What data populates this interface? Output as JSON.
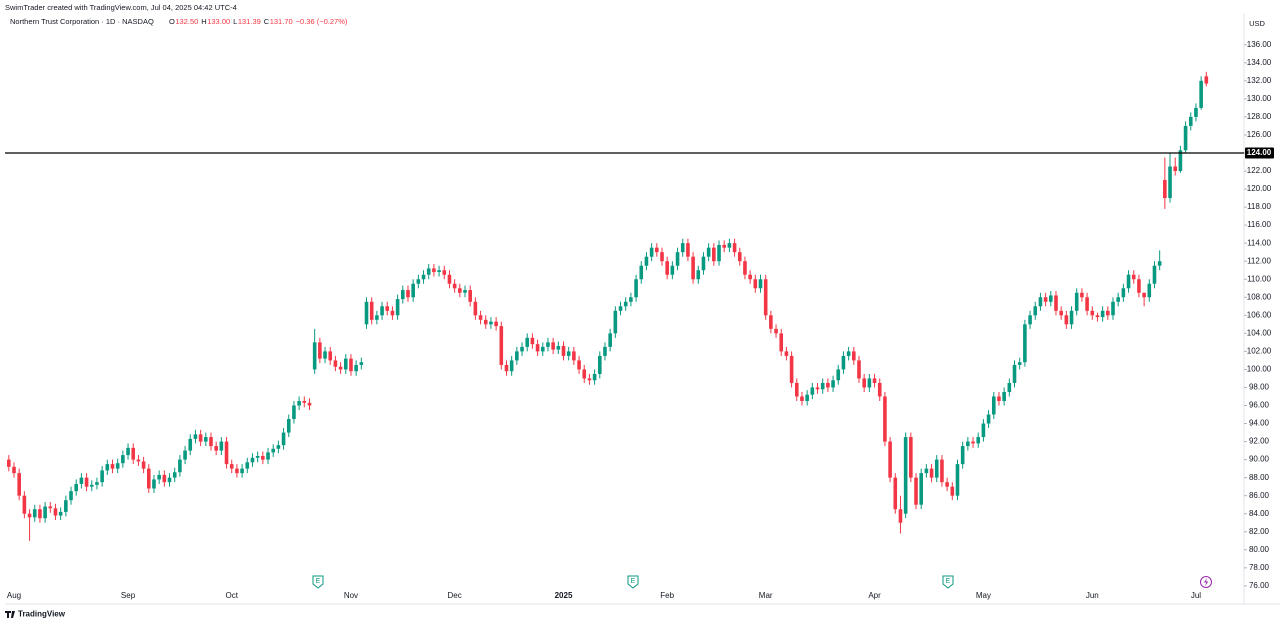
{
  "header": {
    "credit": "SwimTrader created with TradingView.com, Jul 04, 2025 04:42 UTC-4",
    "symbol": "Northern Trust Corporation · 1D · NASDAQ",
    "ohlc": [
      {
        "key": "O",
        "value": "132.50"
      },
      {
        "key": "H",
        "value": "133.00"
      },
      {
        "key": "L",
        "value": "131.39"
      },
      {
        "key": "C",
        "value": "131.70"
      }
    ],
    "change": "−0.36 (−0.27%)",
    "currency": "USD",
    "brand": "TradingView",
    "earnings_marker": "E"
  },
  "chart_data": {
    "type": "candlestick",
    "up_color": "#089981",
    "down_color": "#f23645",
    "grid": false,
    "ylim": [
      74.1,
      139.3
    ],
    "yticks": [
      {
        "value": 76,
        "label": "76.00"
      },
      {
        "value": 78,
        "label": "78.00"
      },
      {
        "value": 80,
        "label": "80.00"
      },
      {
        "value": 82,
        "label": "82.00"
      },
      {
        "value": 84,
        "label": "84.00"
      },
      {
        "value": 86,
        "label": "86.00"
      },
      {
        "value": 88,
        "label": "88.00"
      },
      {
        "value": 90,
        "label": "90.00"
      },
      {
        "value": 92,
        "label": "92.00"
      },
      {
        "value": 94,
        "label": "94.00"
      },
      {
        "value": 96,
        "label": "96.00"
      },
      {
        "value": 98,
        "label": "98.00"
      },
      {
        "value": 100,
        "label": "100.00"
      },
      {
        "value": 102,
        "label": "102.00"
      },
      {
        "value": 104,
        "label": "104.00"
      },
      {
        "value": 106,
        "label": "106.00"
      },
      {
        "value": 108,
        "label": "108.00"
      },
      {
        "value": 110,
        "label": "110.00"
      },
      {
        "value": 112,
        "label": "112.00"
      },
      {
        "value": 114,
        "label": "114.00"
      },
      {
        "value": 116,
        "label": "116.00"
      },
      {
        "value": 118,
        "label": "118.00"
      },
      {
        "value": 120,
        "label": "120.00"
      },
      {
        "value": 122,
        "label": "122.00"
      },
      {
        "value": 124,
        "label": "124.00"
      },
      {
        "value": 126,
        "label": "126.00"
      },
      {
        "value": 128,
        "label": "128.00"
      },
      {
        "value": 130,
        "label": "130.00"
      },
      {
        "value": 132,
        "label": "132.00"
      },
      {
        "value": 134,
        "label": "134.00"
      },
      {
        "value": 136,
        "label": "136.00"
      }
    ],
    "hline": {
      "value": 124,
      "label": "124.00",
      "color": "#000000"
    },
    "categories": [
      null,
      "Aug",
      null,
      null,
      null,
      null,
      null,
      null,
      null,
      null,
      null,
      null,
      null,
      null,
      null,
      null,
      null,
      null,
      null,
      null,
      null,
      null,
      null,
      "Sep",
      null,
      null,
      null,
      null,
      null,
      null,
      null,
      null,
      null,
      null,
      null,
      null,
      null,
      null,
      null,
      null,
      null,
      null,
      null,
      "Oct",
      null,
      null,
      null,
      null,
      null,
      null,
      null,
      null,
      null,
      null,
      null,
      null,
      null,
      null,
      null,
      null,
      null,
      null,
      null,
      null,
      null,
      null,
      "Nov",
      null,
      null,
      null,
      null,
      null,
      null,
      null,
      null,
      null,
      null,
      null,
      null,
      null,
      null,
      null,
      null,
      null,
      null,
      null,
      "Dec",
      null,
      null,
      null,
      null,
      null,
      null,
      null,
      null,
      null,
      null,
      null,
      null,
      null,
      null,
      null,
      null,
      null,
      null,
      null,
      null,
      "2025",
      null,
      null,
      null,
      null,
      null,
      null,
      null,
      null,
      null,
      null,
      null,
      null,
      null,
      null,
      null,
      null,
      null,
      null,
      null,
      "Feb",
      null,
      null,
      null,
      null,
      null,
      null,
      null,
      null,
      null,
      null,
      null,
      null,
      null,
      null,
      null,
      null,
      null,
      null,
      "Mar",
      null,
      null,
      null,
      null,
      null,
      null,
      null,
      null,
      null,
      null,
      null,
      null,
      null,
      null,
      null,
      null,
      null,
      null,
      null,
      null,
      "Apr",
      null,
      null,
      null,
      null,
      null,
      null,
      null,
      null,
      null,
      null,
      null,
      null,
      null,
      null,
      null,
      null,
      null,
      null,
      null,
      null,
      "May",
      null,
      null,
      null,
      null,
      null,
      null,
      null,
      null,
      null,
      null,
      null,
      null,
      null,
      null,
      null,
      null,
      null,
      null,
      null,
      null,
      "Jun",
      null,
      null,
      null,
      null,
      null,
      null,
      null,
      null,
      null,
      null,
      null,
      null,
      null,
      null,
      null,
      null,
      null,
      null,
      null,
      "Jul",
      null,
      null
    ],
    "open": [
      90.0,
      89.2,
      88.5,
      86.0,
      84.0,
      83.6,
      84.5,
      83.5,
      84.8,
      84.6,
      83.8,
      84.2,
      85.5,
      86.5,
      87.3,
      88.0,
      87.0,
      87.2,
      87.5,
      88.8,
      89.5,
      89.0,
      89.6,
      90.5,
      91.3,
      90.0,
      89.8,
      89.0,
      86.8,
      87.8,
      88.3,
      87.5,
      88.0,
      88.6,
      90.0,
      91.0,
      92.3,
      92.8,
      92.0,
      92.5,
      91.5,
      91.0,
      92.0,
      89.5,
      89.0,
      88.5,
      89.0,
      89.7,
      90.2,
      90.4,
      90.0,
      90.8,
      91.2,
      91.6,
      93.0,
      94.5,
      96.0,
      96.5,
      96.3,
      100.0,
      103.0,
      101.2,
      102.0,
      101.0,
      100.3,
      100.0,
      101.2,
      99.8,
      100.5,
      105.0,
      107.5,
      105.5,
      106.0,
      107.0,
      106.5,
      106.0,
      107.8,
      108.8,
      108.0,
      109.5,
      110.0,
      110.5,
      111.2,
      110.8,
      111.0,
      110.5,
      109.5,
      109.0,
      108.5,
      108.8,
      107.5,
      106.0,
      105.5,
      105.0,
      105.3,
      104.8,
      100.5,
      99.8,
      101.0,
      102.0,
      102.5,
      103.5,
      102.8,
      102.0,
      102.5,
      103.0,
      102.2,
      102.6,
      101.5,
      102.0,
      101.0,
      100.0,
      99.0,
      98.8,
      99.5,
      101.5,
      102.5,
      104.0,
      106.5,
      107.0,
      107.5,
      108.0,
      110.0,
      111.5,
      112.5,
      113.5,
      113.0,
      112.0,
      110.5,
      111.5,
      113.0,
      114.0,
      112.5,
      110.0,
      111.0,
      112.5,
      113.5,
      112.0,
      113.8,
      113.5,
      114.0,
      113.0,
      112.0,
      110.5,
      110.0,
      109.0,
      110.0,
      106.0,
      104.5,
      104.0,
      102.0,
      101.5,
      98.5,
      97.0,
      96.5,
      97.2,
      98.0,
      97.8,
      98.5,
      98.0,
      98.8,
      100.0,
      101.5,
      102.0,
      101.0,
      99.0,
      98.0,
      99.0,
      98.5,
      97.0,
      92.0,
      88.0,
      84.5,
      84.0,
      92.5,
      88.0,
      85.0,
      88.5,
      89.0,
      88.0,
      90.0,
      87.5,
      87.0,
      86.0,
      89.5,
      91.5,
      92.0,
      91.8,
      92.5,
      94.0,
      95.0,
      97.0,
      96.5,
      97.5,
      98.5,
      100.5,
      100.8,
      105.0,
      106.0,
      107.0,
      108.0,
      107.5,
      108.2,
      106.5,
      106.0,
      105.0,
      106.5,
      108.5,
      108.0,
      106.5,
      106.0,
      105.8,
      106.5,
      106.0,
      107.5,
      108.0,
      109.0,
      110.5,
      110.0,
      108.5,
      108.0,
      109.5,
      111.5,
      121.0,
      119.0,
      122.5,
      122.0,
      124.3,
      127.0,
      128.0,
      129.0,
      132.5
    ],
    "high": [
      90.5,
      89.7,
      89.0,
      86.5,
      84.5,
      85.0,
      85.0,
      85.3,
      85.3,
      85.1,
      84.7,
      86.0,
      87.0,
      87.8,
      88.5,
      88.5,
      87.7,
      88.0,
      89.3,
      90.0,
      90.0,
      90.1,
      91.0,
      91.8,
      91.8,
      90.5,
      90.3,
      89.5,
      88.3,
      88.8,
      88.8,
      88.5,
      89.1,
      90.5,
      91.5,
      92.8,
      93.3,
      93.3,
      93.0,
      93.0,
      92.0,
      92.5,
      92.5,
      90.0,
      89.5,
      89.5,
      90.2,
      90.7,
      90.9,
      90.9,
      91.3,
      91.7,
      92.1,
      93.5,
      95.0,
      96.5,
      97.0,
      97.0,
      96.8,
      104.5,
      103.5,
      102.5,
      102.5,
      101.5,
      100.8,
      101.7,
      101.7,
      101.0,
      101.3,
      108.0,
      108.0,
      106.5,
      107.5,
      107.5,
      107.0,
      108.3,
      109.3,
      109.3,
      110.0,
      110.5,
      111.0,
      111.7,
      111.7,
      111.5,
      111.5,
      111.0,
      110.0,
      109.5,
      109.3,
      109.3,
      108.0,
      106.5,
      106.0,
      105.8,
      105.8,
      105.3,
      101.0,
      101.5,
      102.5,
      103.0,
      104.0,
      104.0,
      103.3,
      103.0,
      103.5,
      103.5,
      103.1,
      103.1,
      102.5,
      102.5,
      101.5,
      100.5,
      99.5,
      100.0,
      102.0,
      103.0,
      104.5,
      107.0,
      107.5,
      108.0,
      108.5,
      110.5,
      112.0,
      113.0,
      114.0,
      114.0,
      113.5,
      112.5,
      112.0,
      113.5,
      114.5,
      114.5,
      113.0,
      111.5,
      113.0,
      114.0,
      114.0,
      114.3,
      114.3,
      114.5,
      114.5,
      113.5,
      112.5,
      111.0,
      110.5,
      110.5,
      110.5,
      106.5,
      105.0,
      104.5,
      102.5,
      102.0,
      99.0,
      97.5,
      97.7,
      98.5,
      98.5,
      99.0,
      99.0,
      99.3,
      100.5,
      102.0,
      102.5,
      102.5,
      101.5,
      99.5,
      99.5,
      99.5,
      99.0,
      97.5,
      92.5,
      88.5,
      86.0,
      93.0,
      93.0,
      88.5,
      89.0,
      89.5,
      89.5,
      90.5,
      90.5,
      88.0,
      87.5,
      90.0,
      92.0,
      92.5,
      92.5,
      93.0,
      94.5,
      95.5,
      97.5,
      97.5,
      98.0,
      99.0,
      101.0,
      101.3,
      105.5,
      106.5,
      107.5,
      108.5,
      108.5,
      108.7,
      108.7,
      107.0,
      106.5,
      107.0,
      109.0,
      109.0,
      108.5,
      107.0,
      106.3,
      107.0,
      107.0,
      108.0,
      108.5,
      109.5,
      111.0,
      111.0,
      110.5,
      108.5,
      110.0,
      112.0,
      113.2,
      123.5,
      124.0,
      123.5,
      124.8,
      127.5,
      128.5,
      129.5,
      132.5,
      133.0
    ],
    "low": [
      88.7,
      88.0,
      85.5,
      83.5,
      81.0,
      83.1,
      83.0,
      83.0,
      84.1,
      83.3,
      83.3,
      83.7,
      85.0,
      86.0,
      86.8,
      86.5,
      86.5,
      86.7,
      87.0,
      88.3,
      88.5,
      88.5,
      89.1,
      90.0,
      89.5,
      89.3,
      88.5,
      86.3,
      86.3,
      87.3,
      87.0,
      87.0,
      87.5,
      88.1,
      89.5,
      90.5,
      91.8,
      91.5,
      91.5,
      91.0,
      90.5,
      90.5,
      89.0,
      88.5,
      88.0,
      88.0,
      88.5,
      89.2,
      89.7,
      89.5,
      89.5,
      90.3,
      90.7,
      91.1,
      92.5,
      94.0,
      95.5,
      95.8,
      95.5,
      99.5,
      100.7,
      100.7,
      100.5,
      99.8,
      99.5,
      99.5,
      99.3,
      99.3,
      100.0,
      104.5,
      105.0,
      105.0,
      105.5,
      106.0,
      105.5,
      105.5,
      107.3,
      107.5,
      107.5,
      109.0,
      109.5,
      110.0,
      110.3,
      110.3,
      110.0,
      109.0,
      108.5,
      108.0,
      108.0,
      107.0,
      105.5,
      105.0,
      104.5,
      104.5,
      104.3,
      100.0,
      99.3,
      99.3,
      100.5,
      101.5,
      102.0,
      102.3,
      101.5,
      101.5,
      102.0,
      101.7,
      101.7,
      101.0,
      101.0,
      100.5,
      99.5,
      98.5,
      98.3,
      98.3,
      99.0,
      101.0,
      102.0,
      103.5,
      106.0,
      106.5,
      107.0,
      107.5,
      109.5,
      111.0,
      112.0,
      112.5,
      111.5,
      110.0,
      110.0,
      111.0,
      112.5,
      112.0,
      109.5,
      109.5,
      110.5,
      112.0,
      111.5,
      111.5,
      113.0,
      113.0,
      112.5,
      111.5,
      110.0,
      109.5,
      108.5,
      108.5,
      105.5,
      104.0,
      103.5,
      101.5,
      101.0,
      98.0,
      96.5,
      96.0,
      96.0,
      96.7,
      97.3,
      97.3,
      97.5,
      97.5,
      98.3,
      99.5,
      101.0,
      100.5,
      98.5,
      97.5,
      97.5,
      98.0,
      96.5,
      91.5,
      87.5,
      84.0,
      81.8,
      83.5,
      87.5,
      84.5,
      84.5,
      88.0,
      87.5,
      87.5,
      87.0,
      86.5,
      85.5,
      85.5,
      89.0,
      91.0,
      91.3,
      91.3,
      92.0,
      93.5,
      94.5,
      96.0,
      96.0,
      97.0,
      98.0,
      100.0,
      100.3,
      104.5,
      105.5,
      106.5,
      107.0,
      107.0,
      106.0,
      105.5,
      104.5,
      104.5,
      106.0,
      107.5,
      106.0,
      105.5,
      105.3,
      105.3,
      105.5,
      105.5,
      107.0,
      107.5,
      108.5,
      109.5,
      108.0,
      107.0,
      107.5,
      109.0,
      111.0,
      117.8,
      118.5,
      121.5,
      121.8,
      124.0,
      126.5,
      127.5,
      128.8,
      131.39
    ],
    "close": [
      89.2,
      88.5,
      86.0,
      84.0,
      83.6,
      84.5,
      83.5,
      84.8,
      84.6,
      83.8,
      84.2,
      85.5,
      86.5,
      87.3,
      88.0,
      87.0,
      87.2,
      87.5,
      88.8,
      89.5,
      89.0,
      89.6,
      90.5,
      91.3,
      90.0,
      89.8,
      89.0,
      86.8,
      87.8,
      88.3,
      87.5,
      88.0,
      88.6,
      90.0,
      91.0,
      92.3,
      92.8,
      92.0,
      92.5,
      91.5,
      91.0,
      92.0,
      89.5,
      89.0,
      88.5,
      89.0,
      89.7,
      90.2,
      90.4,
      90.0,
      90.8,
      91.2,
      91.6,
      93.0,
      94.5,
      96.0,
      96.5,
      96.3,
      96.0,
      103.0,
      101.2,
      102.0,
      101.0,
      100.3,
      100.0,
      101.2,
      99.8,
      100.5,
      100.8,
      107.5,
      105.5,
      106.0,
      107.0,
      106.5,
      106.0,
      107.8,
      108.8,
      108.0,
      109.5,
      110.0,
      110.5,
      111.2,
      110.8,
      111.0,
      110.5,
      109.5,
      109.0,
      108.5,
      108.8,
      107.5,
      106.0,
      105.5,
      105.0,
      105.3,
      104.8,
      100.5,
      99.8,
      101.0,
      102.0,
      102.5,
      103.5,
      102.8,
      102.0,
      102.5,
      103.0,
      102.2,
      102.6,
      101.5,
      102.0,
      101.0,
      100.0,
      99.0,
      98.8,
      99.5,
      101.5,
      102.5,
      104.0,
      106.5,
      107.0,
      107.5,
      108.0,
      110.0,
      111.5,
      112.5,
      113.5,
      113.0,
      112.0,
      110.5,
      111.5,
      113.0,
      114.0,
      112.5,
      110.0,
      111.0,
      112.5,
      113.5,
      112.0,
      113.8,
      113.5,
      114.0,
      113.0,
      112.0,
      110.5,
      110.0,
      109.0,
      110.0,
      106.0,
      104.5,
      104.0,
      102.0,
      101.5,
      98.5,
      97.0,
      96.5,
      97.2,
      98.0,
      97.8,
      98.5,
      98.0,
      98.8,
      100.0,
      101.5,
      102.0,
      101.0,
      99.0,
      98.0,
      99.0,
      98.5,
      97.0,
      92.0,
      88.0,
      84.5,
      83.0,
      92.5,
      88.0,
      85.0,
      88.5,
      89.0,
      88.0,
      90.0,
      87.5,
      87.0,
      86.0,
      89.5,
      91.5,
      92.0,
      91.8,
      92.5,
      94.0,
      95.0,
      97.0,
      96.5,
      97.5,
      98.5,
      100.5,
      100.8,
      105.0,
      106.0,
      107.0,
      108.0,
      107.5,
      108.2,
      106.5,
      106.0,
      105.0,
      106.5,
      108.5,
      108.0,
      106.5,
      106.0,
      105.8,
      106.5,
      106.0,
      107.5,
      108.0,
      109.0,
      110.5,
      110.0,
      108.5,
      108.0,
      109.5,
      111.5,
      112.0,
      119.0,
      122.5,
      122.0,
      124.3,
      127.0,
      128.0,
      129.0,
      132.0,
      131.7
    ]
  }
}
